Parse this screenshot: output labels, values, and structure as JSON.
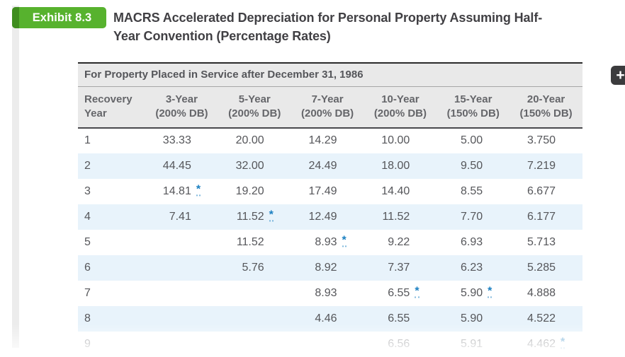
{
  "exhibit": {
    "label": "Exhibit 8.3"
  },
  "title": {
    "line1": "MACRS Accelerated Depreciation for Personal Property Assuming Half-",
    "line2": "Year Convention (Percentage Rates)"
  },
  "expand_button": {
    "icon": "plus-icon",
    "glyph": "+"
  },
  "colors": {
    "badge_green": "#57b22e",
    "badge_green_dark": "#3f8d1e",
    "link_blue": "#1a7fc1",
    "stripe_blue": "#e8f3fb",
    "header_gray": "#e9e9e9"
  },
  "table": {
    "caption": "For Property Placed in Service after December 31, 1986",
    "footnote_symbol": "*",
    "columns": [
      {
        "line1": "Recovery",
        "line2": "Year"
      },
      {
        "line1": "3-Year",
        "line2": "(200% DB)"
      },
      {
        "line1": "5-Year",
        "line2": "(200% DB)"
      },
      {
        "line1": "7-Year",
        "line2": "(200% DB)"
      },
      {
        "line1": "10-Year",
        "line2": "(200% DB)"
      },
      {
        "line1": "15-Year",
        "line2": "(150% DB)"
      },
      {
        "line1": "20-Year",
        "line2": "(150% DB)"
      }
    ],
    "rows": [
      {
        "year": "1",
        "cells": [
          {
            "v": "33.33"
          },
          {
            "v": "20.00"
          },
          {
            "v": "14.29"
          },
          {
            "v": "10.00"
          },
          {
            "v": "5.00"
          },
          {
            "v": "3.750"
          }
        ]
      },
      {
        "year": "2",
        "cells": [
          {
            "v": "44.45"
          },
          {
            "v": "32.00"
          },
          {
            "v": "24.49"
          },
          {
            "v": "18.00"
          },
          {
            "v": "9.50"
          },
          {
            "v": "7.219"
          }
        ]
      },
      {
        "year": "3",
        "cells": [
          {
            "v": "14.81",
            "star": true
          },
          {
            "v": "19.20"
          },
          {
            "v": "17.49"
          },
          {
            "v": "14.40"
          },
          {
            "v": "8.55"
          },
          {
            "v": "6.677"
          }
        ]
      },
      {
        "year": "4",
        "cells": [
          {
            "v": "7.41"
          },
          {
            "v": "11.52",
            "star": true
          },
          {
            "v": "12.49"
          },
          {
            "v": "11.52"
          },
          {
            "v": "7.70"
          },
          {
            "v": "6.177"
          }
        ]
      },
      {
        "year": "5",
        "cells": [
          {
            "v": ""
          },
          {
            "v": "11.52"
          },
          {
            "v": "8.93",
            "star": true
          },
          {
            "v": "9.22"
          },
          {
            "v": "6.93"
          },
          {
            "v": "5.713"
          }
        ]
      },
      {
        "year": "6",
        "cells": [
          {
            "v": ""
          },
          {
            "v": "5.76"
          },
          {
            "v": "8.92"
          },
          {
            "v": "7.37"
          },
          {
            "v": "6.23"
          },
          {
            "v": "5.285"
          }
        ]
      },
      {
        "year": "7",
        "cells": [
          {
            "v": ""
          },
          {
            "v": ""
          },
          {
            "v": "8.93"
          },
          {
            "v": "6.55",
            "star": true
          },
          {
            "v": "5.90",
            "star": true
          },
          {
            "v": "4.888"
          }
        ]
      },
      {
        "year": "8",
        "cells": [
          {
            "v": ""
          },
          {
            "v": ""
          },
          {
            "v": "4.46"
          },
          {
            "v": "6.55"
          },
          {
            "v": "5.90"
          },
          {
            "v": "4.522"
          }
        ]
      },
      {
        "year": "9",
        "faded": true,
        "cells": [
          {
            "v": ""
          },
          {
            "v": ""
          },
          {
            "v": ""
          },
          {
            "v": "6.56"
          },
          {
            "v": "5.91"
          },
          {
            "v": "4.462",
            "star": true
          }
        ]
      }
    ]
  }
}
